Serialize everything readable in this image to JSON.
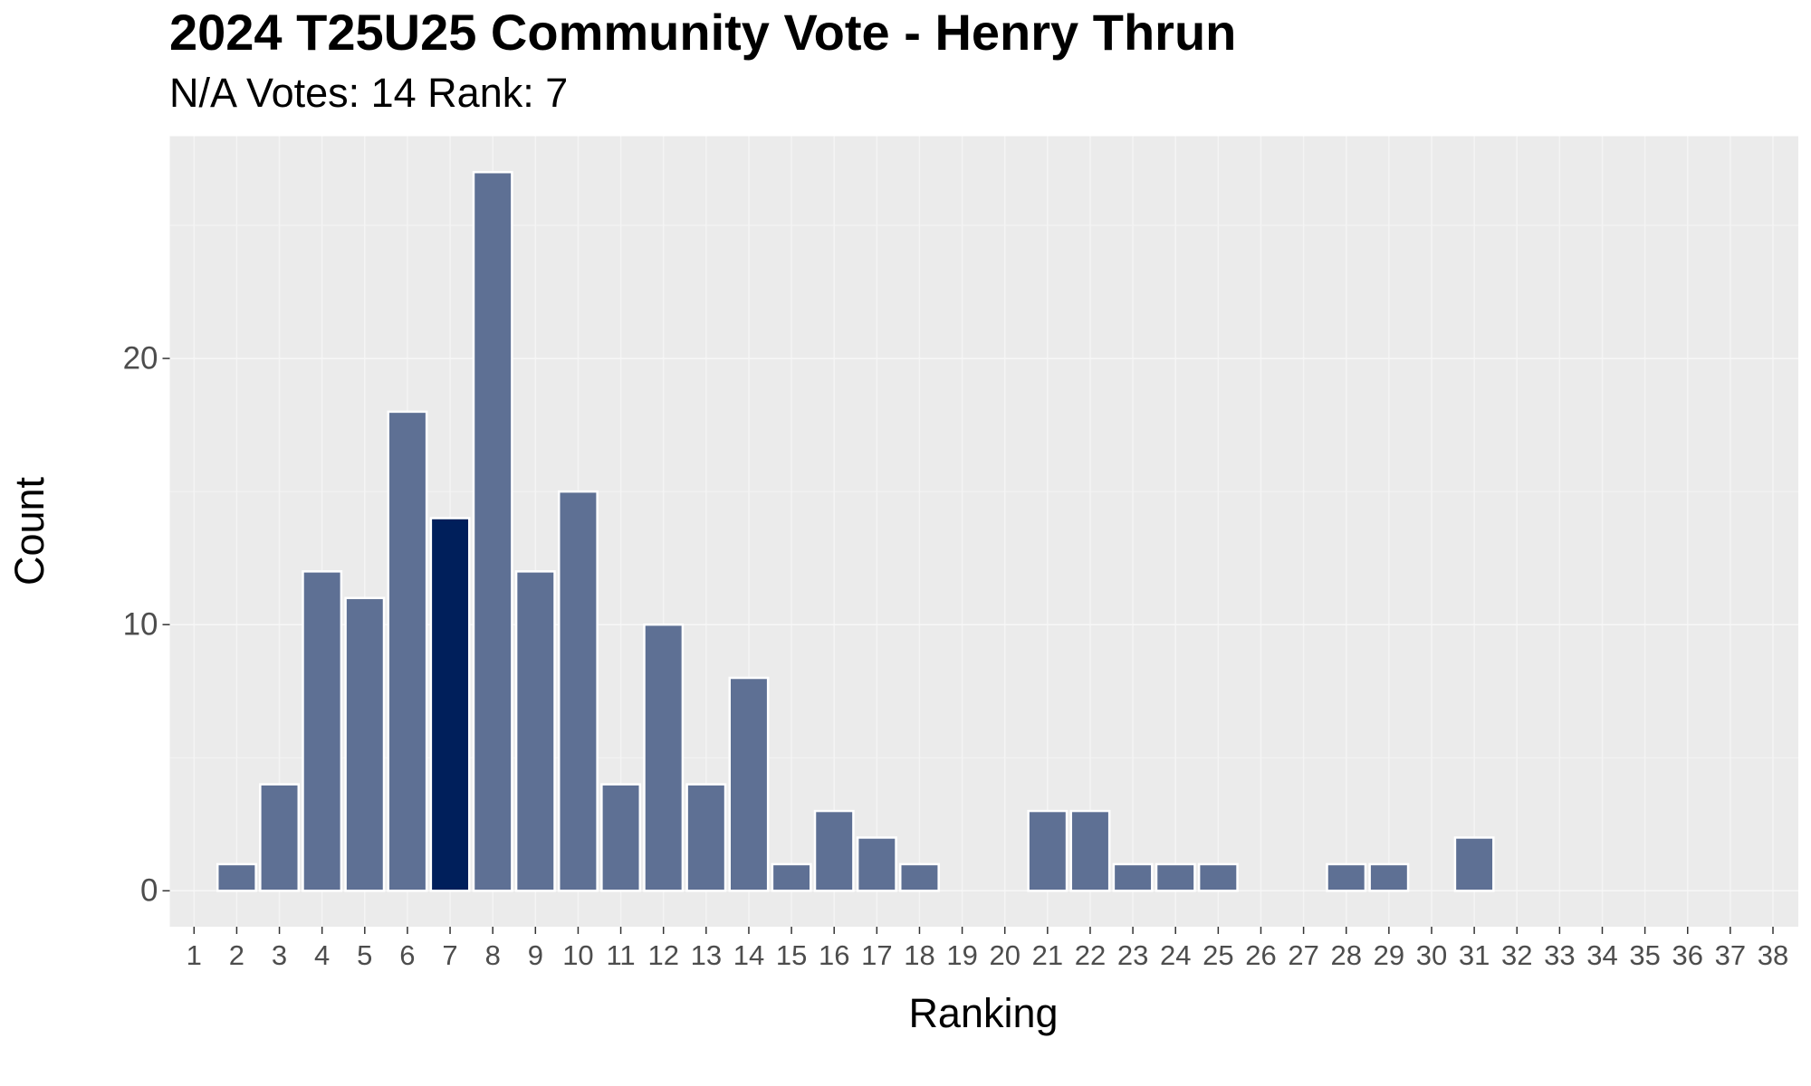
{
  "chart_data": {
    "type": "bar",
    "title": "2024 T25U25 Community Vote - Henry Thrun",
    "subtitle": "N/A Votes: 14  Rank: 7",
    "x_label": "Ranking",
    "y_label": "Count",
    "categories": [
      "1",
      "2",
      "3",
      "4",
      "5",
      "6",
      "7",
      "8",
      "9",
      "10",
      "11",
      "12",
      "13",
      "14",
      "15",
      "16",
      "17",
      "18",
      "19",
      "20",
      "21",
      "22",
      "23",
      "24",
      "25",
      "26",
      "27",
      "28",
      "29",
      "30",
      "31",
      "32",
      "33",
      "34",
      "35",
      "36",
      "37",
      "38"
    ],
    "values": [
      0,
      1,
      4,
      12,
      11,
      18,
      14,
      27,
      12,
      15,
      4,
      10,
      4,
      8,
      1,
      3,
      2,
      1,
      0,
      0,
      3,
      3,
      1,
      1,
      1,
      0,
      0,
      1,
      1,
      0,
      2,
      0,
      0,
      0,
      0,
      0,
      0,
      0
    ],
    "colors": [
      "#5e7094",
      "#5e7094",
      "#5e7094",
      "#5e7094",
      "#5e7094",
      "#5e7094",
      "#001f5b",
      "#5e7094",
      "#5e7094",
      "#5e7094",
      "#5e7094",
      "#5e7094",
      "#5e7094",
      "#5e7094",
      "#5e7094",
      "#5e7094",
      "#5e7094",
      "#5e7094",
      "#5e7094",
      "#5e7094",
      "#5e7094",
      "#5e7094",
      "#5e7094",
      "#5e7094",
      "#5e7094",
      "#5e7094",
      "#5e7094",
      "#5e7094",
      "#5e7094",
      "#5e7094",
      "#5e7094",
      "#5e7094",
      "#5e7094",
      "#5e7094",
      "#5e7094",
      "#5e7094",
      "#5e7094",
      "#5e7094"
    ],
    "ylim": [
      -1.35,
      28.35
    ],
    "yticks": [
      0,
      10,
      20
    ],
    "yminor": [
      5,
      15,
      25
    ],
    "grid": true
  }
}
